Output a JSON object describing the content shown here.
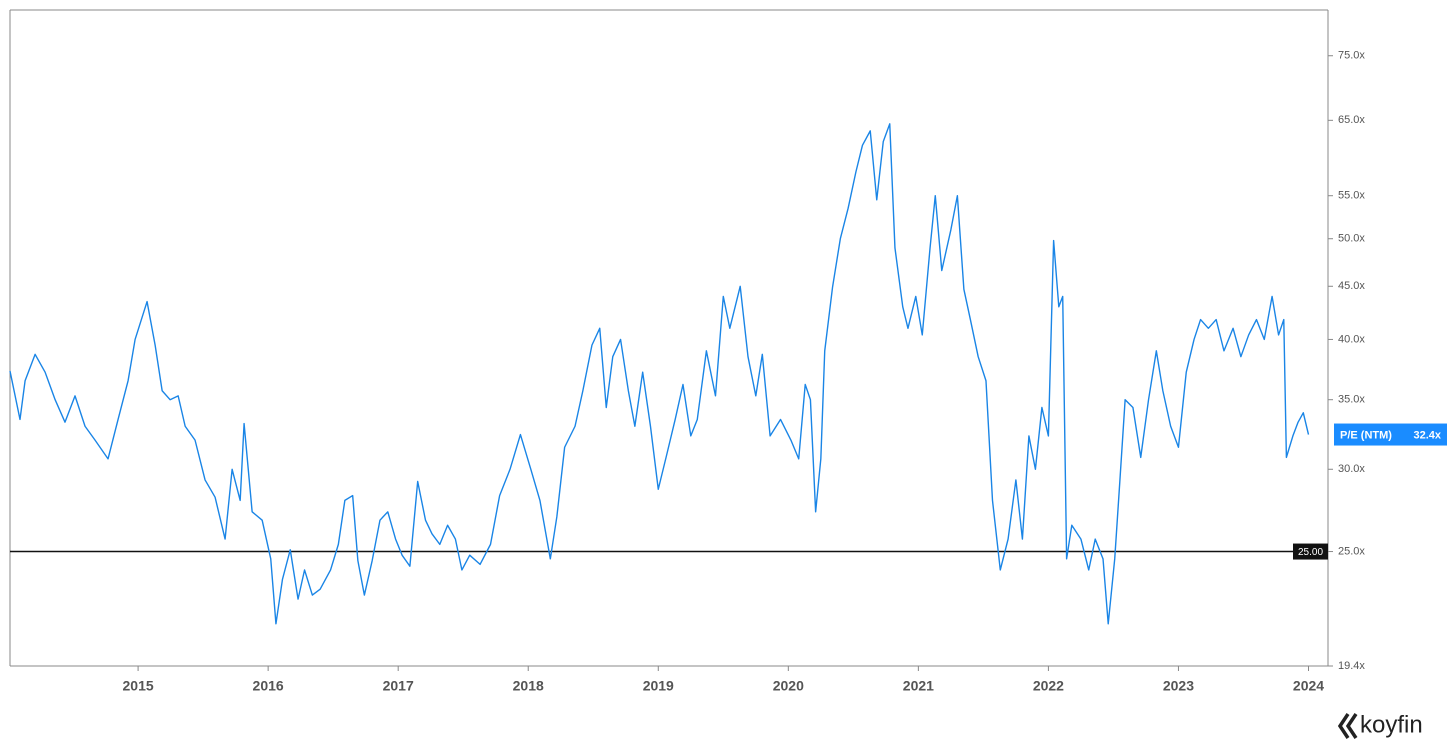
{
  "chart_data": {
    "type": "line",
    "log_scale": true,
    "xlim": [
      2014.015,
      2024.15
    ],
    "xticks": [
      2015,
      2016,
      2017,
      2018,
      2019,
      2020,
      2021,
      2022,
      2023,
      2024
    ],
    "ylim": [
      19.4,
      83
    ],
    "yticks": [
      {
        "value": 19.4,
        "label": "19.4x"
      },
      {
        "value": 25,
        "label": "25.0x"
      },
      {
        "value": 30,
        "label": "30.0x"
      },
      {
        "value": 35,
        "label": "35.0x"
      },
      {
        "value": 40,
        "label": "40.0x"
      },
      {
        "value": 45,
        "label": "45.0x"
      },
      {
        "value": 50,
        "label": "50.0x"
      },
      {
        "value": 55,
        "label": "55.0x"
      },
      {
        "value": 65,
        "label": "65.0x"
      },
      {
        "value": 75,
        "label": "75.0x"
      }
    ],
    "x": [
      2014.015,
      2014.092,
      2014.131,
      2014.208,
      2014.285,
      2014.362,
      2014.438,
      2014.515,
      2014.592,
      2014.669,
      2014.769,
      2014.846,
      2014.923,
      2014.977,
      2015.069,
      2015.131,
      2015.185,
      2015.246,
      2015.308,
      2015.362,
      2015.438,
      2015.515,
      2015.592,
      2015.669,
      2015.723,
      2015.785,
      2015.815,
      2015.877,
      2015.954,
      2016.02,
      2016.06,
      2016.11,
      2016.17,
      2016.23,
      2016.28,
      2016.34,
      2016.4,
      2016.48,
      2016.54,
      2016.59,
      2016.65,
      2016.69,
      2016.74,
      2016.8,
      2016.86,
      2016.92,
      2016.98,
      2017.03,
      2017.09,
      2017.15,
      2017.21,
      2017.26,
      2017.32,
      2017.38,
      2017.44,
      2017.49,
      2017.55,
      2017.63,
      2017.71,
      2017.78,
      2017.86,
      2017.94,
      2018.02,
      2018.09,
      2018.17,
      2018.22,
      2018.28,
      2018.36,
      2018.42,
      2018.49,
      2018.55,
      2018.6,
      2018.65,
      2018.71,
      2018.77,
      2018.82,
      2018.88,
      2018.94,
      2019.0,
      2019.06,
      2019.13,
      2019.19,
      2019.25,
      2019.3,
      2019.37,
      2019.44,
      2019.5,
      2019.55,
      2019.63,
      2019.69,
      2019.75,
      2019.8,
      2019.86,
      2019.94,
      2020.02,
      2020.08,
      2020.13,
      2020.17,
      2020.21,
      2020.25,
      2020.28,
      2020.34,
      2020.4,
      2020.46,
      2020.52,
      2020.57,
      2020.63,
      2020.68,
      2020.73,
      2020.78,
      2020.82,
      2020.88,
      2020.92,
      2020.98,
      2021.03,
      2021.09,
      2021.13,
      2021.18,
      2021.25,
      2021.3,
      2021.35,
      2021.4,
      2021.46,
      2021.52,
      2021.57,
      2021.63,
      2021.69,
      2021.75,
      2021.8,
      2021.85,
      2021.9,
      2021.95,
      2022.0,
      2022.04,
      2022.08,
      2022.11,
      2022.14,
      2022.18,
      2022.25,
      2022.31,
      2022.36,
      2022.42,
      2022.46,
      2022.51,
      2022.55,
      2022.59,
      2022.65,
      2022.71,
      2022.77,
      2022.83,
      2022.88,
      2022.94,
      2023.0,
      2023.06,
      2023.12,
      2023.17,
      2023.23,
      2023.29,
      2023.35,
      2023.42,
      2023.48,
      2023.54,
      2023.6,
      2023.66,
      2023.72,
      2023.77,
      2023.81,
      2023.83,
      2023.88,
      2023.92,
      2023.96,
      2024.0
    ],
    "series": [
      {
        "name": "P/E (NTM)",
        "color": "#1a85e6",
        "values": [
          37.3,
          33.5,
          36.5,
          38.7,
          37.2,
          35,
          33.3,
          35.3,
          33,
          32,
          30.7,
          33.5,
          36.5,
          40,
          43.5,
          39.5,
          35.7,
          35,
          35.3,
          33,
          32,
          29.3,
          28.2,
          25.7,
          30,
          28,
          33.2,
          27.3,
          26.8,
          24.6,
          21.3,
          23.5,
          25.1,
          22.5,
          24,
          22.7,
          23,
          24,
          25.4,
          28,
          28.3,
          24.5,
          22.7,
          24.5,
          26.8,
          27.3,
          25.7,
          24.8,
          24.2,
          29.2,
          26.8,
          26,
          25.4,
          26.5,
          25.7,
          24,
          24.8,
          24.3,
          25.4,
          28.3,
          30,
          32.4,
          30,
          28,
          24.6,
          27,
          31.5,
          33,
          35.7,
          39.5,
          41,
          34.4,
          38.5,
          40,
          35.7,
          33,
          37.2,
          33,
          28.7,
          30.8,
          33.5,
          36.2,
          32.3,
          33.5,
          39,
          35.3,
          44,
          41,
          45,
          38.5,
          35.3,
          38.7,
          32.3,
          33.5,
          32,
          30.7,
          36.2,
          35,
          27.3,
          30.7,
          39,
          44.9,
          50,
          53.5,
          58,
          61.5,
          63.5,
          54.5,
          62,
          64.5,
          49,
          43,
          41,
          44,
          40.4,
          49,
          55,
          46.6,
          51,
          55,
          44.7,
          41.8,
          38.5,
          36.5,
          28,
          24,
          25.7,
          29.3,
          25.7,
          32.3,
          30,
          34.4,
          32.3,
          49.8,
          43,
          44,
          24.6,
          26.5,
          25.7,
          24,
          25.7,
          24.6,
          21.3,
          24.6,
          29.3,
          35,
          34.4,
          30.8,
          35,
          39,
          35.7,
          33,
          31.5,
          37.2,
          40,
          41.8,
          41,
          41.8,
          39,
          41,
          38.5,
          40.4,
          41.8,
          40,
          44,
          40.4,
          41.8,
          30.8,
          32.3,
          33.3,
          34,
          32.4
        ]
      }
    ],
    "reference_line": {
      "value": 25,
      "label": "25.00"
    },
    "last_value": {
      "value": 32.4,
      "label": "32.4x"
    },
    "logo": "koyfin"
  }
}
